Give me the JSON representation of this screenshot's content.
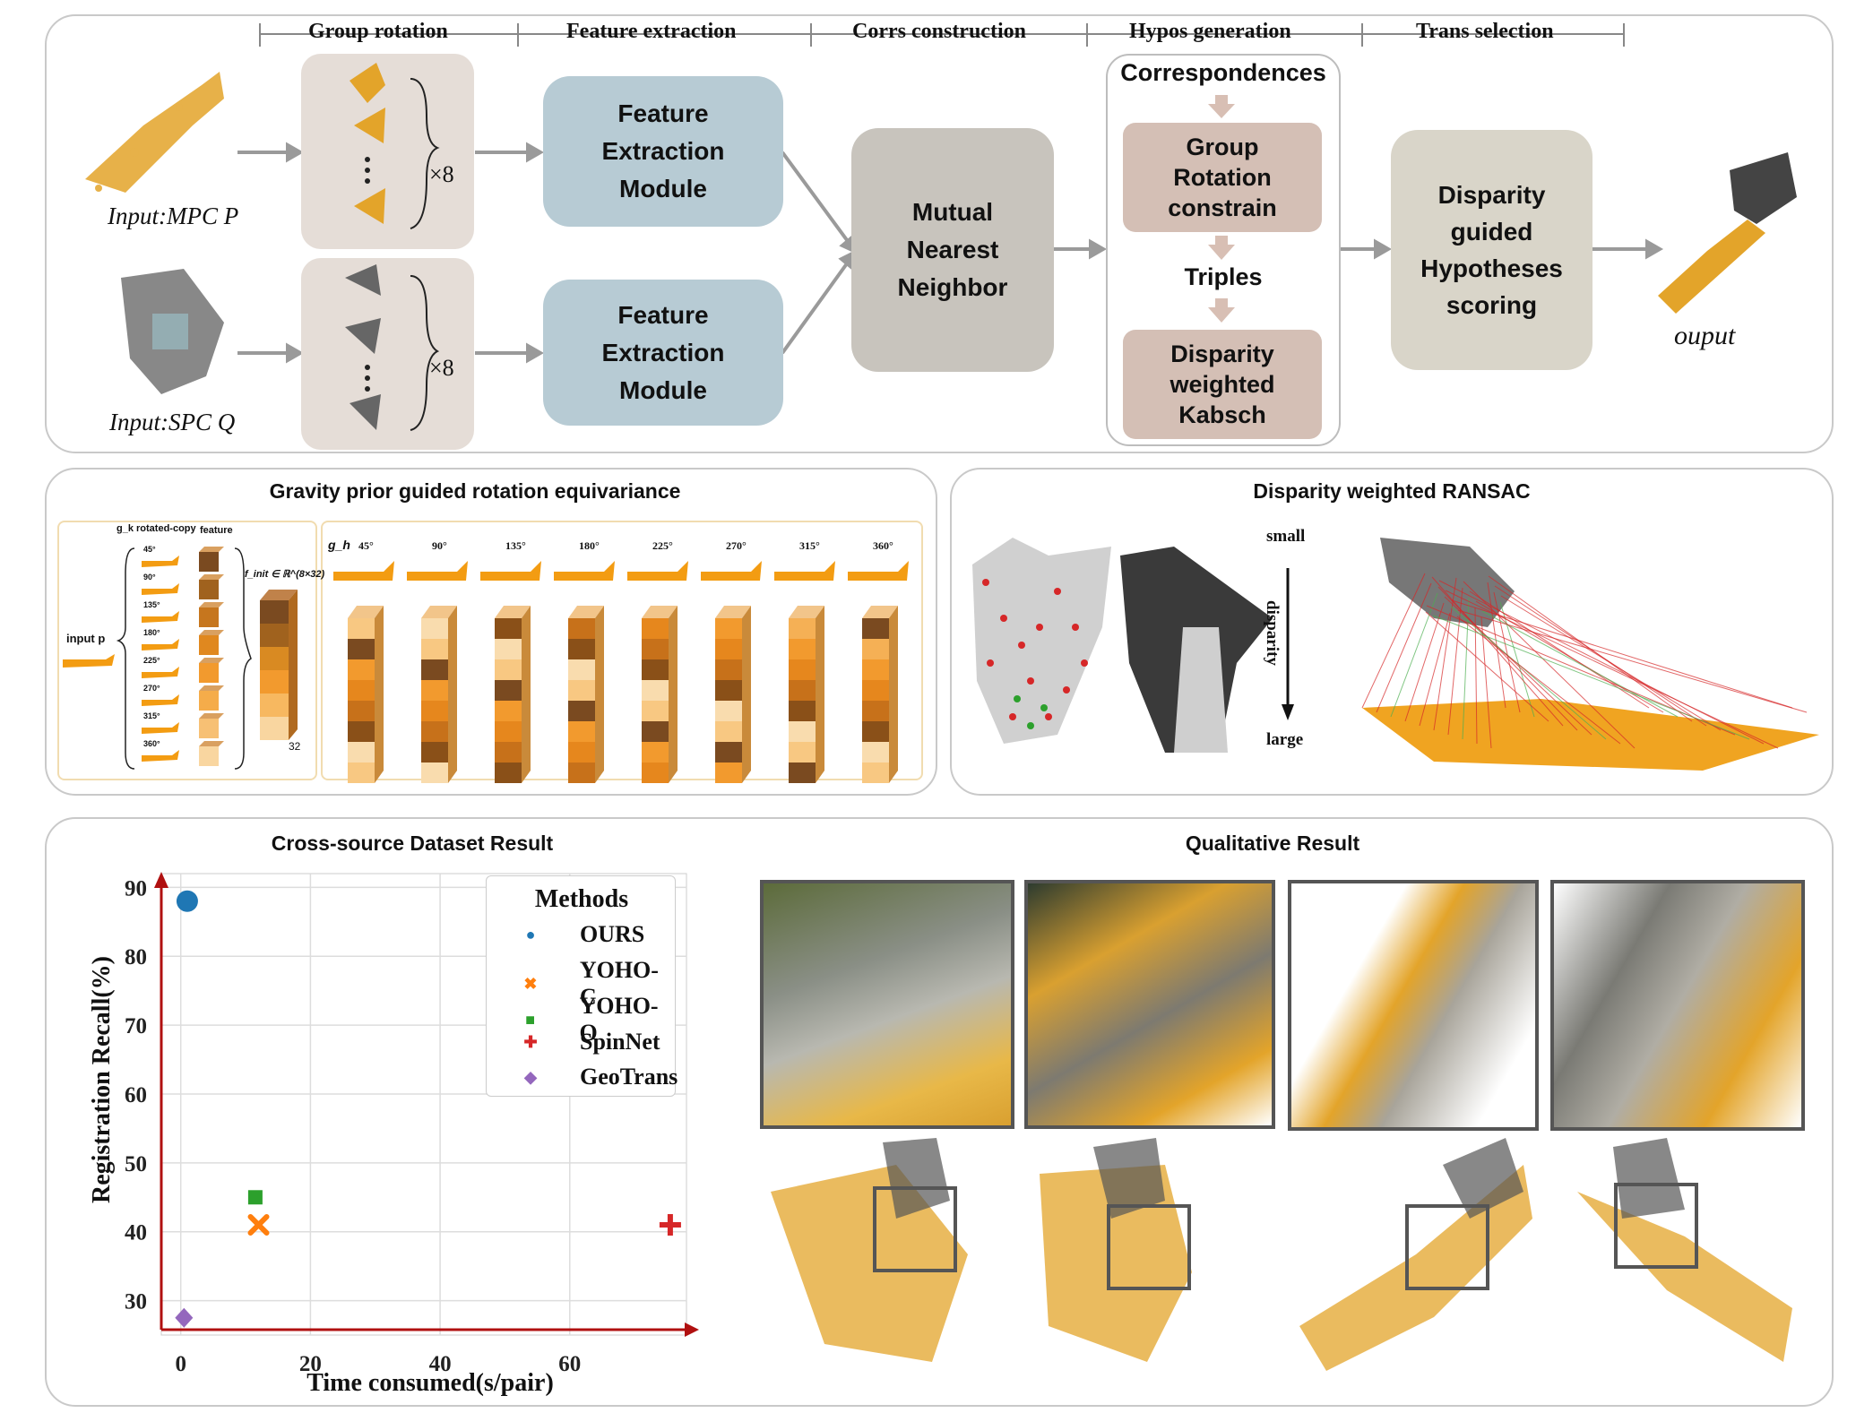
{
  "pipeline": {
    "stages": [
      "Group rotation",
      "Feature extraction",
      "Corrs construction",
      "Hypos generation",
      "Trans selection"
    ],
    "input_p": "Input:MPC P",
    "input_q": "Input:SPC Q",
    "times8": "×8",
    "feature_module": "Feature\nExtraction\nModule",
    "mnn": "Mutual\nNearest\nNeighbor",
    "correspondences": "Correspondences",
    "group_rot": "Group\nRotation\nconstrain",
    "triples": "Triples",
    "dwk": "Disparity\nweighted\nKabsch",
    "scoring": "Disparity\nguided\nHypotheses\nscoring",
    "output": "ouput",
    "colors": {
      "feature_box": "#b7cbd4",
      "mnn_box": "#c8c4bd",
      "hypo_box": "#d4bfb5",
      "score_box": "#d9d5c9",
      "rot_bg": "#e5ddd7"
    }
  },
  "gravity": {
    "title": "Gravity prior guided rotation equivariance",
    "rotated_copy": "g_k rotated-copy",
    "feature": "feature",
    "finit": "f_init ∈ ℝ^(8×32)",
    "input_p": "input p",
    "dim": "32",
    "gh": "g_h",
    "angles": [
      "45°",
      "90°",
      "135°",
      "180°",
      "225°",
      "270°",
      "315°",
      "360°"
    ]
  },
  "ransac": {
    "title": "Disparity weighted RANSAC",
    "small": "small",
    "disparity": "disparity",
    "large": "large"
  },
  "chart_data": {
    "type": "scatter",
    "title": "Cross-source Dataset Result",
    "xlabel": "Time consumed(s/pair)",
    "ylabel": "Registration Recall(%)",
    "xlim": [
      -3,
      78
    ],
    "ylim": [
      25,
      92
    ],
    "xticks": [
      0,
      20,
      40,
      60
    ],
    "yticks": [
      30,
      40,
      50,
      60,
      70,
      80,
      90
    ],
    "grid": true,
    "legend_title": "Methods",
    "legend_position": "top-right",
    "series": [
      {
        "name": "OURS",
        "marker": "circle",
        "color": "#1f77b4",
        "x": [
          1.0
        ],
        "y": [
          88
        ]
      },
      {
        "name": "YOHO-C",
        "marker": "x",
        "color": "#ff7f0e",
        "x": [
          12
        ],
        "y": [
          41
        ]
      },
      {
        "name": "YOHO-O",
        "marker": "square",
        "color": "#2ca02c",
        "x": [
          11.5
        ],
        "y": [
          45
        ]
      },
      {
        "name": "SpinNet",
        "marker": "plus",
        "color": "#d62728",
        "x": [
          75.5
        ],
        "y": [
          41
        ]
      },
      {
        "name": "GeoTrans",
        "marker": "diamond",
        "color": "#9467bd",
        "x": [
          0.5
        ],
        "y": [
          27.5
        ]
      }
    ]
  },
  "qualitative": {
    "title": "Qualitative Result"
  }
}
